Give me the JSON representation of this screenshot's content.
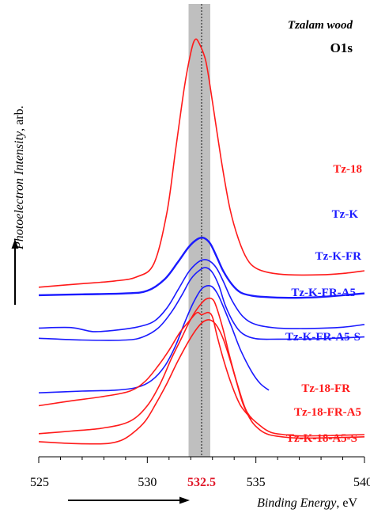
{
  "chart_data": {
    "type": "line",
    "title": "Tzalam wood",
    "subtitle": "O1s",
    "xlabel": "Binding Energy, eV",
    "xlabel_italic_part": "Binding Energy",
    "xlabel_unit": ", eV",
    "ylabel": "Photoelectron Intensity, arb.",
    "ylabel_italic_part": "Photoelectron Intensity",
    "ylabel_unit": ", arb.",
    "xlim": [
      525,
      540
    ],
    "x_ticks": [
      525,
      530,
      532.5,
      535,
      540
    ],
    "x_tick_labels": [
      "525",
      "530",
      "532.5",
      "535",
      "540"
    ],
    "highlight_tick": "532.5",
    "highlight_color": "#e0182a",
    "shaded_band": [
      531.9,
      532.9
    ],
    "reference_line": 532.5,
    "colors": {
      "red": "#ff1a1a",
      "blue": "#1a1aff",
      "band": "#bfbfbf"
    },
    "series": [
      {
        "name": "Tz-18",
        "color": "#ff1a1a",
        "x": [
          525,
          527,
          528.5,
          529.5,
          530.3,
          530.9,
          531.3,
          531.7,
          532.0,
          532.2,
          532.4,
          532.7,
          533.0,
          533.4,
          533.8,
          534.2,
          534.6,
          535.0,
          535.6,
          536.5,
          538,
          539,
          540
        ],
        "y": [
          35.2,
          36.0,
          36.6,
          37.5,
          40.5,
          52,
          66,
          80,
          88,
          91,
          90,
          86,
          77,
          64,
          53,
          46,
          41.5,
          39.5,
          38.5,
          38.0,
          38.0,
          38.3,
          38.9
        ]
      },
      {
        "name": "Tz-K",
        "color": "#1a1aff",
        "x": [
          525,
          527,
          529,
          530,
          530.8,
          531.4,
          531.9,
          532.3,
          532.6,
          532.9,
          533.2,
          533.5,
          533.9,
          534.3,
          534.8,
          535.4,
          536.5,
          538,
          540
        ],
        "y": [
          33.4,
          33.6,
          33.8,
          34.4,
          37,
          40.8,
          44.2,
          46.0,
          46.3,
          45.0,
          42.0,
          38.8,
          35.8,
          34.0,
          33.3,
          33.0,
          32.8,
          33.0,
          33.8
        ]
      },
      {
        "name": "Tz-K-FR",
        "color": "#1a1aff",
        "x": [
          525,
          526.5,
          527.5,
          528.5,
          529.5,
          530.3,
          530.9,
          531.4,
          531.9,
          532.3,
          532.6,
          532.9,
          533.2,
          533.5,
          533.9,
          534.4,
          535.0,
          536,
          537.5,
          539,
          540
        ],
        "y": [
          26.0,
          26.1,
          25.2,
          25.5,
          26.2,
          27.5,
          30.5,
          34.5,
          38.6,
          40.7,
          41.4,
          41.0,
          39.4,
          36.5,
          32.2,
          28.6,
          26.8,
          26.0,
          25.9,
          26.2,
          26.8
        ]
      },
      {
        "name": "Tz-K-FR-A5",
        "color": "#1a1aff",
        "x": [
          525,
          527,
          529,
          529.8,
          530.5,
          531.1,
          531.6,
          532.0,
          532.4,
          532.7,
          533.0,
          533.3,
          533.6,
          534.0,
          534.4,
          535.0,
          536,
          538,
          540
        ],
        "y": [
          23.7,
          23.3,
          23.3,
          24.0,
          26.0,
          29.5,
          33.5,
          37.0,
          39.0,
          39.6,
          38.5,
          35.5,
          31.0,
          27.0,
          24.7,
          23.6,
          23.5,
          23.6,
          24.0
        ]
      },
      {
        "name": "Tz-K-FR-A5-S",
        "color": "#1a1aff",
        "x": [
          525,
          527,
          528.5,
          529.5,
          530.2,
          530.8,
          531.3,
          531.7,
          532.1,
          532.5,
          532.9,
          533.2,
          533.5,
          533.9,
          534.3,
          534.8,
          535.2,
          535.6
        ],
        "y": [
          11.4,
          11.8,
          12.0,
          12.6,
          14.2,
          17.4,
          22.0,
          27.0,
          31.5,
          34.8,
          35.5,
          34.0,
          30.8,
          26.0,
          21.0,
          16.2,
          13.5,
          12.0
        ]
      },
      {
        "name": "Tz-18-FR",
        "color": "#ff1a1a",
        "x": [
          525,
          526.5,
          528,
          529.2,
          529.9,
          530.5,
          531.0,
          531.5,
          532.0,
          532.3,
          532.5,
          532.8,
          533.0,
          533.2,
          533.5,
          533.9,
          534.3,
          534.8
        ],
        "y": [
          8.5,
          9.6,
          10.6,
          11.8,
          14.0,
          17.5,
          21.0,
          25.0,
          28.0,
          29.5,
          29.0,
          29.5,
          28.5,
          24.5,
          19.0,
          13.0,
          8.5,
          5.5
        ]
      },
      {
        "name": "Tz-18-FR-A5",
        "color": "#ff1a1a",
        "x": [
          525,
          526.5,
          528,
          529.2,
          530.0,
          530.6,
          531.1,
          531.6,
          532.0,
          532.4,
          532.7,
          533.0,
          533.2,
          533.5,
          533.8,
          534.2,
          534.6,
          535.2,
          535.7,
          536.3,
          537,
          538.5,
          540
        ],
        "y": [
          2.2,
          2.8,
          3.5,
          5.0,
          8.5,
          13.5,
          19.0,
          24.0,
          28.0,
          31.0,
          32.5,
          32.5,
          30.5,
          25.5,
          19.5,
          12.5,
          7.0,
          4.0,
          2.5,
          2.0,
          1.7,
          1.8,
          2.0
        ]
      },
      {
        "name": "Tz-K-18-A5-S",
        "color": "#ff1a1a",
        "x": [
          525,
          525.7,
          526.5,
          527.4,
          528.2,
          528.8,
          529.3,
          529.9,
          530.4,
          530.9,
          531.4,
          531.9,
          532.3,
          532.6,
          532.9,
          533.2,
          533.5,
          533.8,
          534.1,
          534.4,
          534.8,
          535.2,
          535.6,
          536.2,
          537,
          538.5,
          540
        ],
        "y": [
          0.4,
          0.2,
          0.0,
          -0.1,
          0.0,
          0.7,
          2.2,
          5.0,
          9.0,
          13.5,
          18.5,
          23.0,
          26.0,
          27.5,
          27.8,
          26.5,
          23.5,
          19.0,
          14.0,
          9.0,
          5.0,
          3.0,
          2.0,
          1.5,
          1.2,
          1.3,
          1.5
        ]
      }
    ]
  },
  "label_colors": [
    "#ff1a1a",
    "#1a1aff",
    "#1a1aff",
    "#1a1aff",
    "#1a1aff",
    "#ff1a1a",
    "#ff1a1a",
    "#ff1a1a"
  ]
}
